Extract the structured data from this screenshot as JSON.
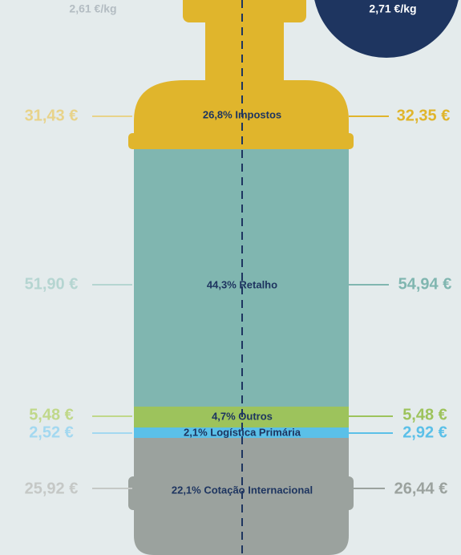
{
  "header": {
    "left_price": "2,61 €/kg",
    "right_price": "2,71 €/kg"
  },
  "segments": [
    {
      "label": "26,8% Impostos",
      "left": "31,43 €",
      "right": "32,35 €"
    },
    {
      "label": "44,3% Retalho",
      "left": "51,90 €",
      "right": "54,94 €"
    },
    {
      "label": "4,7% Outros",
      "left": "5,48 €",
      "right": "5,48 €"
    },
    {
      "label": "2,1% Logística Primária",
      "left": "2,52 €",
      "right": "2,92 €"
    },
    {
      "label": "22,1% Cotação Internacional",
      "left": "25,92 €",
      "right": "26,44 €"
    }
  ]
}
